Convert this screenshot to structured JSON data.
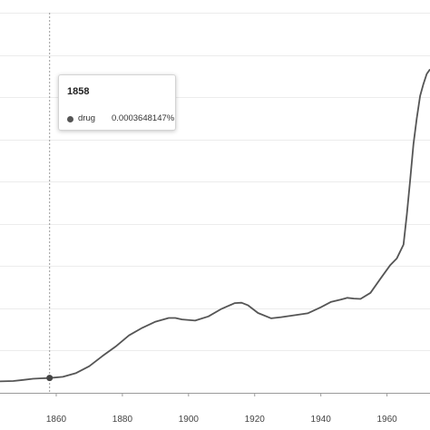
{
  "chart_data": {
    "type": "line",
    "title": "",
    "xlabel": "",
    "ylabel": "",
    "xlim": [
      1843,
      1973
    ],
    "ylim": [
      0,
      1
    ],
    "x_ticks": [
      "1860",
      "1880",
      "1900",
      "1920",
      "1940",
      "1960"
    ],
    "grid": "horizontal",
    "legend": "none",
    "series": [
      {
        "color": "#555555",
        "x": [
          1843,
          1847,
          1850,
          1853,
          1855,
          1858,
          1862,
          1866,
          1870,
          1874,
          1878,
          1882,
          1886,
          1890,
          1894,
          1896,
          1898,
          1902,
          1906,
          1910,
          1914,
          1916,
          1918,
          1921,
          1925,
          1928,
          1932,
          1936,
          1940,
          1943,
          1946,
          1948,
          1950,
          1952,
          1955,
          1958,
          1961,
          1963,
          1965,
          1966,
          1967,
          1968,
          1969,
          1970,
          1971,
          1972,
          1973
        ],
        "y": [
          0.03,
          0.031,
          0.034,
          0.037,
          0.038,
          0.039,
          0.042,
          0.052,
          0.07,
          0.097,
          0.122,
          0.151,
          0.171,
          0.187,
          0.197,
          0.197,
          0.193,
          0.19,
          0.201,
          0.221,
          0.236,
          0.237,
          0.23,
          0.21,
          0.196,
          0.199,
          0.204,
          0.209,
          0.225,
          0.239,
          0.245,
          0.25,
          0.248,
          0.247,
          0.263,
          0.3,
          0.336,
          0.354,
          0.39,
          0.47,
          0.559,
          0.655,
          0.722,
          0.781,
          0.812,
          0.839,
          0.851
        ]
      }
    ],
    "annotations": {
      "hover_year": 1858,
      "hover_y": 0.039
    }
  },
  "tooltip": {
    "title": "1858",
    "series_name": "drug",
    "value": "0.0003648147%"
  }
}
